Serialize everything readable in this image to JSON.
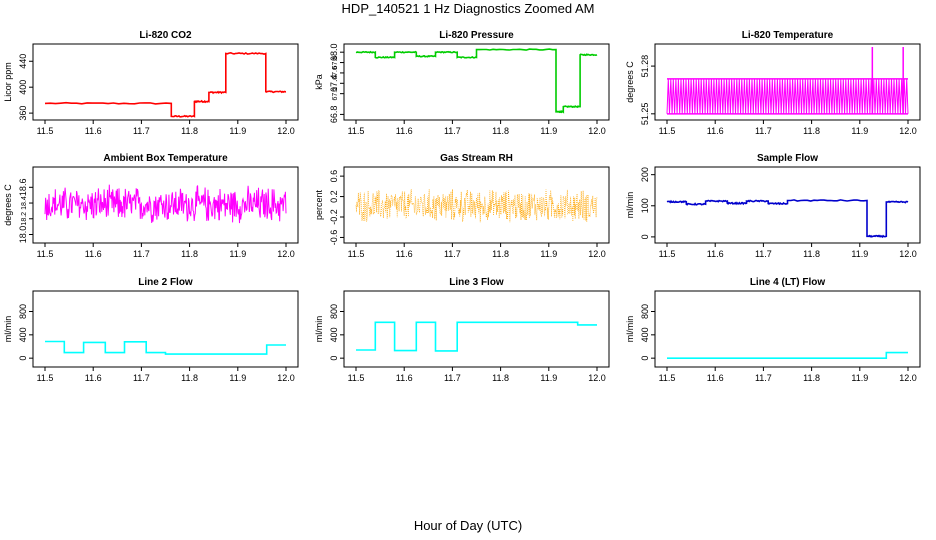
{
  "title": "HDP_140521  1 Hz Diagnostics Zoomed AM",
  "xlabel": "Hour of Day (UTC)",
  "chart_data": [
    {
      "type": "line",
      "title": "Li-820 CO2",
      "ylabel": "Licor ppm",
      "color": "#ff0000",
      "xlim": [
        11.5,
        12.0
      ],
      "ylim": [
        354,
        462
      ],
      "xticks": [
        11.5,
        11.6,
        11.7,
        11.8,
        11.9,
        12.0
      ],
      "xtick_labels": [
        "11.5",
        "11.6",
        "11.7",
        "11.8",
        "11.9",
        "12.0"
      ],
      "yticks": [
        360,
        400,
        440
      ],
      "ytick_labels": [
        "360",
        "400",
        "440"
      ],
      "x": [
        11.5,
        11.762,
        11.762,
        11.81,
        11.81,
        11.84,
        11.84,
        11.875,
        11.875,
        11.958,
        11.958,
        12.0
      ],
      "y": [
        375,
        375,
        355,
        355,
        378,
        378,
        392,
        392,
        452,
        452,
        393,
        393
      ],
      "noise": 1
    },
    {
      "type": "line",
      "title": "Li-820 Pressure",
      "ylabel": "kPa",
      "color": "#00cc00",
      "xlim": [
        11.5,
        12.0
      ],
      "ylim": [
        66.75,
        68.1
      ],
      "xticks": [
        11.5,
        11.6,
        11.7,
        11.8,
        11.9,
        12.0
      ],
      "xtick_labels": [
        "11.5",
        "11.6",
        "11.7",
        "11.8",
        "11.9",
        "12.0"
      ],
      "yticks": [
        66.8,
        67.4,
        68.0
      ],
      "ytick_labels": [
        "66.8",
        "67.4",
        "68.0"
      ],
      "extra_tick_labels": [
        "67.2",
        "67.6",
        "67.8"
      ],
      "x": [
        11.5,
        11.54,
        11.54,
        11.58,
        11.58,
        11.625,
        11.625,
        11.665,
        11.665,
        11.71,
        11.71,
        11.75,
        11.75,
        11.915,
        11.915,
        11.93,
        11.93,
        11.965,
        11.965,
        12.0
      ],
      "y": [
        68.0,
        68.0,
        67.9,
        67.9,
        68.0,
        68.0,
        67.92,
        67.92,
        68.0,
        68.0,
        67.9,
        67.9,
        68.05,
        68.05,
        66.85,
        66.85,
        66.95,
        66.95,
        67.95,
        67.95
      ],
      "noise": 0.01
    },
    {
      "type": "line",
      "title": "Li-820 Temperature",
      "ylabel": "degrees C",
      "color": "#ff00ff",
      "xlim": [
        11.5,
        12.0
      ],
      "ylim": [
        51.248,
        51.292
      ],
      "xticks": [
        11.5,
        11.6,
        11.7,
        11.8,
        11.9,
        12.0
      ],
      "xtick_labels": [
        "11.5",
        "11.6",
        "11.7",
        "11.8",
        "11.9",
        "12.0"
      ],
      "yticks": [
        51.25,
        51.28
      ],
      "ytick_labels": [
        "51.25",
        "51.28"
      ],
      "low": 51.25,
      "high": 51.272,
      "spikes_x": [
        11.926,
        11.99
      ],
      "spike_top": 51.292
    },
    {
      "type": "line",
      "title": "Ambient Box Temperature",
      "ylabel": "degrees C",
      "color": "#ff00ff",
      "xlim": [
        11.5,
        12.0
      ],
      "ylim": [
        17.93,
        18.82
      ],
      "xticks": [
        11.5,
        11.6,
        11.7,
        11.8,
        11.9,
        12.0
      ],
      "xtick_labels": [
        "11.5",
        "11.6",
        "11.7",
        "11.8",
        "11.9",
        "12.0"
      ],
      "yticks": [
        18.0,
        18.6
      ],
      "ytick_labels": [
        "18.0",
        "18.6"
      ],
      "extra_tick_labels": [
        "18.2",
        "18.4"
      ],
      "mean": 18.38,
      "amplitude": 0.22
    },
    {
      "type": "scatter",
      "title": "Gas Stream RH",
      "ylabel": "percent",
      "color": "#ffa500",
      "xlim": [
        11.5,
        12.0
      ],
      "ylim": [
        -0.65,
        0.72
      ],
      "xticks": [
        11.5,
        11.6,
        11.7,
        11.8,
        11.9,
        12.0
      ],
      "xtick_labels": [
        "11.5",
        "11.6",
        "11.7",
        "11.8",
        "11.9",
        "12.0"
      ],
      "yticks": [
        -0.6,
        -0.2,
        0.2,
        0.6
      ],
      "ytick_labels": [
        "-0.6",
        "-0.2",
        "0.2",
        "0.6"
      ],
      "mean": 0.02,
      "amplitude": 0.3
    },
    {
      "type": "line",
      "title": "Sample Flow",
      "ylabel": "ml/min",
      "color": "#0000cc",
      "xlim": [
        11.5,
        12.0
      ],
      "ylim": [
        -10,
        215
      ],
      "xticks": [
        11.5,
        11.6,
        11.7,
        11.8,
        11.9,
        12.0
      ],
      "xtick_labels": [
        "11.5",
        "11.6",
        "11.7",
        "11.8",
        "11.9",
        "12.0"
      ],
      "yticks": [
        0,
        100,
        200
      ],
      "ytick_labels": [
        "0",
        "100",
        "200"
      ],
      "x": [
        11.5,
        11.54,
        11.54,
        11.58,
        11.58,
        11.625,
        11.625,
        11.665,
        11.665,
        11.71,
        11.71,
        11.75,
        11.75,
        11.915,
        11.915,
        11.955,
        11.955,
        12.0
      ],
      "y": [
        113,
        113,
        105,
        105,
        115,
        115,
        108,
        108,
        115,
        115,
        107,
        107,
        117,
        117,
        2,
        2,
        112,
        112
      ],
      "noise": 2
    },
    {
      "type": "line",
      "title": "Line 2 Flow",
      "ylabel": "ml/min",
      "color": "#00ffff",
      "xlim": [
        11.5,
        12.0
      ],
      "ylim": [
        -100,
        1100
      ],
      "xticks": [
        11.5,
        11.6,
        11.7,
        11.8,
        11.9,
        12.0
      ],
      "xtick_labels": [
        "11.5",
        "11.6",
        "11.7",
        "11.8",
        "11.9",
        "12.0"
      ],
      "yticks": [
        0,
        400,
        800
      ],
      "ytick_labels": [
        "0",
        "400",
        "800"
      ],
      "x": [
        11.5,
        11.54,
        11.54,
        11.58,
        11.58,
        11.625,
        11.625,
        11.665,
        11.665,
        11.71,
        11.71,
        11.75,
        11.75,
        11.96,
        11.96,
        12.0
      ],
      "y": [
        285,
        285,
        95,
        95,
        270,
        270,
        95,
        95,
        280,
        280,
        95,
        95,
        70,
        70,
        225,
        225
      ]
    },
    {
      "type": "line",
      "title": "Line 3 Flow",
      "ylabel": "ml/min",
      "color": "#00ffff",
      "xlim": [
        11.5,
        12.0
      ],
      "ylim": [
        -100,
        1100
      ],
      "xticks": [
        11.5,
        11.6,
        11.7,
        11.8,
        11.9,
        12.0
      ],
      "xtick_labels": [
        "11.5",
        "11.6",
        "11.7",
        "11.8",
        "11.9",
        "12.0"
      ],
      "yticks": [
        0,
        400,
        800
      ],
      "ytick_labels": [
        "0",
        "400",
        "800"
      ],
      "x": [
        11.5,
        11.54,
        11.54,
        11.58,
        11.58,
        11.625,
        11.625,
        11.665,
        11.665,
        11.71,
        11.71,
        11.96,
        11.96,
        12.0
      ],
      "y": [
        140,
        140,
        615,
        615,
        130,
        130,
        615,
        615,
        125,
        125,
        615,
        615,
        570,
        570
      ]
    },
    {
      "type": "line",
      "title": "Line 4 (LT) Flow",
      "ylabel": "ml/min",
      "color": "#00ffff",
      "xlim": [
        11.5,
        12.0
      ],
      "ylim": [
        -100,
        1100
      ],
      "xticks": [
        11.5,
        11.6,
        11.7,
        11.8,
        11.9,
        12.0
      ],
      "xtick_labels": [
        "11.5",
        "11.6",
        "11.7",
        "11.8",
        "11.9",
        "12.0"
      ],
      "yticks": [
        0,
        400,
        800
      ],
      "ytick_labels": [
        "0",
        "400",
        "800"
      ],
      "x": [
        11.5,
        11.955,
        11.955,
        12.0
      ],
      "y": [
        0,
        0,
        95,
        95
      ]
    }
  ]
}
